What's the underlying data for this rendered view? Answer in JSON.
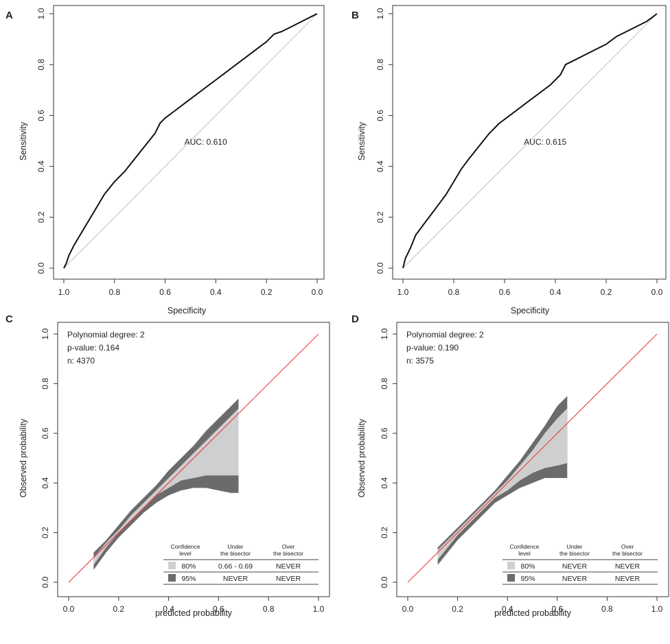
{
  "chart_data": [
    {
      "panel": "A",
      "type": "line",
      "title": "",
      "xlabel": "Specificity",
      "ylabel": "Sensitivity",
      "xlim": [
        1.0,
        0.0
      ],
      "ylim": [
        0.0,
        1.0
      ],
      "x_ticks": [
        "1.0",
        "0.8",
        "0.6",
        "0.4",
        "0.2",
        "0.0"
      ],
      "y_ticks": [
        "0.0",
        "0.2",
        "0.4",
        "0.6",
        "0.8",
        "1.0"
      ],
      "annotation": "AUC: 0.610",
      "series": [
        {
          "name": "ROC curve",
          "x": [
            1.0,
            0.99,
            0.98,
            0.96,
            0.93,
            0.9,
            0.87,
            0.84,
            0.8,
            0.76,
            0.72,
            0.68,
            0.64,
            0.62,
            0.6,
            0.56,
            0.52,
            0.48,
            0.44,
            0.4,
            0.36,
            0.32,
            0.28,
            0.24,
            0.2,
            0.17,
            0.14,
            0.1,
            0.06,
            0.02,
            0.0
          ],
          "y": [
            0.0,
            0.02,
            0.05,
            0.09,
            0.14,
            0.19,
            0.24,
            0.29,
            0.34,
            0.38,
            0.43,
            0.48,
            0.53,
            0.57,
            0.59,
            0.62,
            0.65,
            0.68,
            0.71,
            0.74,
            0.77,
            0.8,
            0.83,
            0.86,
            0.89,
            0.92,
            0.93,
            0.95,
            0.97,
            0.99,
            1.0
          ]
        },
        {
          "name": "reference",
          "x": [
            1.0,
            0.0
          ],
          "y": [
            0.0,
            1.0
          ]
        }
      ]
    },
    {
      "panel": "B",
      "type": "line",
      "title": "",
      "xlabel": "Specificity",
      "ylabel": "Sensitivity",
      "xlim": [
        1.0,
        0.0
      ],
      "ylim": [
        0.0,
        1.0
      ],
      "x_ticks": [
        "1.0",
        "0.8",
        "0.6",
        "0.4",
        "0.2",
        "0.0"
      ],
      "y_ticks": [
        "0.0",
        "0.2",
        "0.4",
        "0.6",
        "0.8",
        "1.0"
      ],
      "annotation": "AUC: 0.615",
      "series": [
        {
          "name": "ROC curve",
          "x": [
            1.0,
            0.99,
            0.97,
            0.95,
            0.92,
            0.89,
            0.86,
            0.83,
            0.8,
            0.77,
            0.74,
            0.7,
            0.66,
            0.62,
            0.58,
            0.54,
            0.5,
            0.46,
            0.42,
            0.38,
            0.36,
            0.32,
            0.28,
            0.24,
            0.2,
            0.16,
            0.12,
            0.08,
            0.04,
            0.0
          ],
          "y": [
            0.0,
            0.04,
            0.08,
            0.13,
            0.17,
            0.21,
            0.25,
            0.29,
            0.34,
            0.39,
            0.43,
            0.48,
            0.53,
            0.57,
            0.6,
            0.63,
            0.66,
            0.69,
            0.72,
            0.76,
            0.8,
            0.82,
            0.84,
            0.86,
            0.88,
            0.91,
            0.93,
            0.95,
            0.97,
            1.0
          ]
        },
        {
          "name": "reference",
          "x": [
            1.0,
            0.0
          ],
          "y": [
            0.0,
            1.0
          ]
        }
      ]
    },
    {
      "panel": "C",
      "type": "area",
      "title": "",
      "xlabel": "predicted probability",
      "ylabel": "Observed probability",
      "xlim": [
        0.0,
        1.0
      ],
      "ylim": [
        0.0,
        1.0
      ],
      "x_ticks": [
        "0.0",
        "0.2",
        "0.4",
        "0.6",
        "0.8",
        "1.0"
      ],
      "y_ticks": [
        "0.0",
        "0.2",
        "0.4",
        "0.6",
        "0.8",
        "1.0"
      ],
      "annotations": [
        "Polynomial degree: 2",
        "p-value: 0.164",
        "n: 4370"
      ],
      "bisector": {
        "x": [
          0.0,
          1.0
        ],
        "y": [
          0.0,
          1.0
        ]
      },
      "bands": {
        "x": [
          0.1,
          0.15,
          0.2,
          0.25,
          0.3,
          0.35,
          0.4,
          0.45,
          0.5,
          0.55,
          0.6,
          0.65,
          0.68
        ],
        "upper95": [
          0.12,
          0.17,
          0.23,
          0.29,
          0.34,
          0.39,
          0.45,
          0.5,
          0.55,
          0.61,
          0.66,
          0.71,
          0.74
        ],
        "upper80": [
          0.1,
          0.16,
          0.21,
          0.27,
          0.32,
          0.37,
          0.42,
          0.47,
          0.52,
          0.57,
          0.62,
          0.67,
          0.7
        ],
        "lower80": [
          0.07,
          0.14,
          0.2,
          0.25,
          0.3,
          0.35,
          0.38,
          0.41,
          0.42,
          0.43,
          0.43,
          0.43,
          0.43
        ],
        "lower95": [
          0.05,
          0.12,
          0.18,
          0.23,
          0.28,
          0.32,
          0.35,
          0.37,
          0.38,
          0.38,
          0.37,
          0.36,
          0.36
        ]
      },
      "legend_table": {
        "headers": [
          "Confidence level",
          "Under the bisector",
          "Over the bisector"
        ],
        "rows": [
          {
            "level": "80%",
            "under": "0.66 - 0.69",
            "over": "NEVER"
          },
          {
            "level": "95%",
            "under": "NEVER",
            "over": "NEVER"
          }
        ]
      }
    },
    {
      "panel": "D",
      "type": "area",
      "title": "",
      "xlabel": "predicted probability",
      "ylabel": "Observed probability",
      "xlim": [
        0.0,
        1.0
      ],
      "ylim": [
        0.0,
        1.0
      ],
      "x_ticks": [
        "0.0",
        "0.2",
        "0.4",
        "0.6",
        "0.8",
        "1.0"
      ],
      "y_ticks": [
        "0.0",
        "0.2",
        "0.4",
        "0.6",
        "0.8",
        "1.0"
      ],
      "annotations": [
        "Polynomial degree: 2",
        "p-value: 0.190",
        "n: 3575"
      ],
      "bisector": {
        "x": [
          0.0,
          1.0
        ],
        "y": [
          0.0,
          1.0
        ]
      },
      "bands": {
        "x": [
          0.12,
          0.16,
          0.2,
          0.25,
          0.3,
          0.35,
          0.4,
          0.45,
          0.5,
          0.55,
          0.6,
          0.64
        ],
        "upper95": [
          0.14,
          0.18,
          0.22,
          0.27,
          0.32,
          0.37,
          0.43,
          0.49,
          0.56,
          0.63,
          0.71,
          0.75
        ],
        "upper80": [
          0.13,
          0.17,
          0.21,
          0.26,
          0.31,
          0.36,
          0.41,
          0.47,
          0.53,
          0.6,
          0.66,
          0.7
        ],
        "lower80": [
          0.09,
          0.14,
          0.19,
          0.24,
          0.29,
          0.34,
          0.37,
          0.41,
          0.44,
          0.46,
          0.47,
          0.48
        ],
        "lower95": [
          0.07,
          0.12,
          0.17,
          0.22,
          0.27,
          0.32,
          0.35,
          0.38,
          0.4,
          0.42,
          0.42,
          0.42
        ]
      },
      "legend_table": {
        "headers": [
          "Confidence level",
          "Under the bisector",
          "Over the bisector"
        ],
        "rows": [
          {
            "level": "80%",
            "under": "NEVER",
            "over": "NEVER"
          },
          {
            "level": "95%",
            "under": "NEVER",
            "over": "NEVER"
          }
        ]
      }
    }
  ],
  "colors": {
    "band95": "#6b6b6b",
    "band80": "#cfcfcf",
    "bisector": "#e8474c",
    "roc_line": "#111111",
    "reference": "#c8c8c8"
  }
}
